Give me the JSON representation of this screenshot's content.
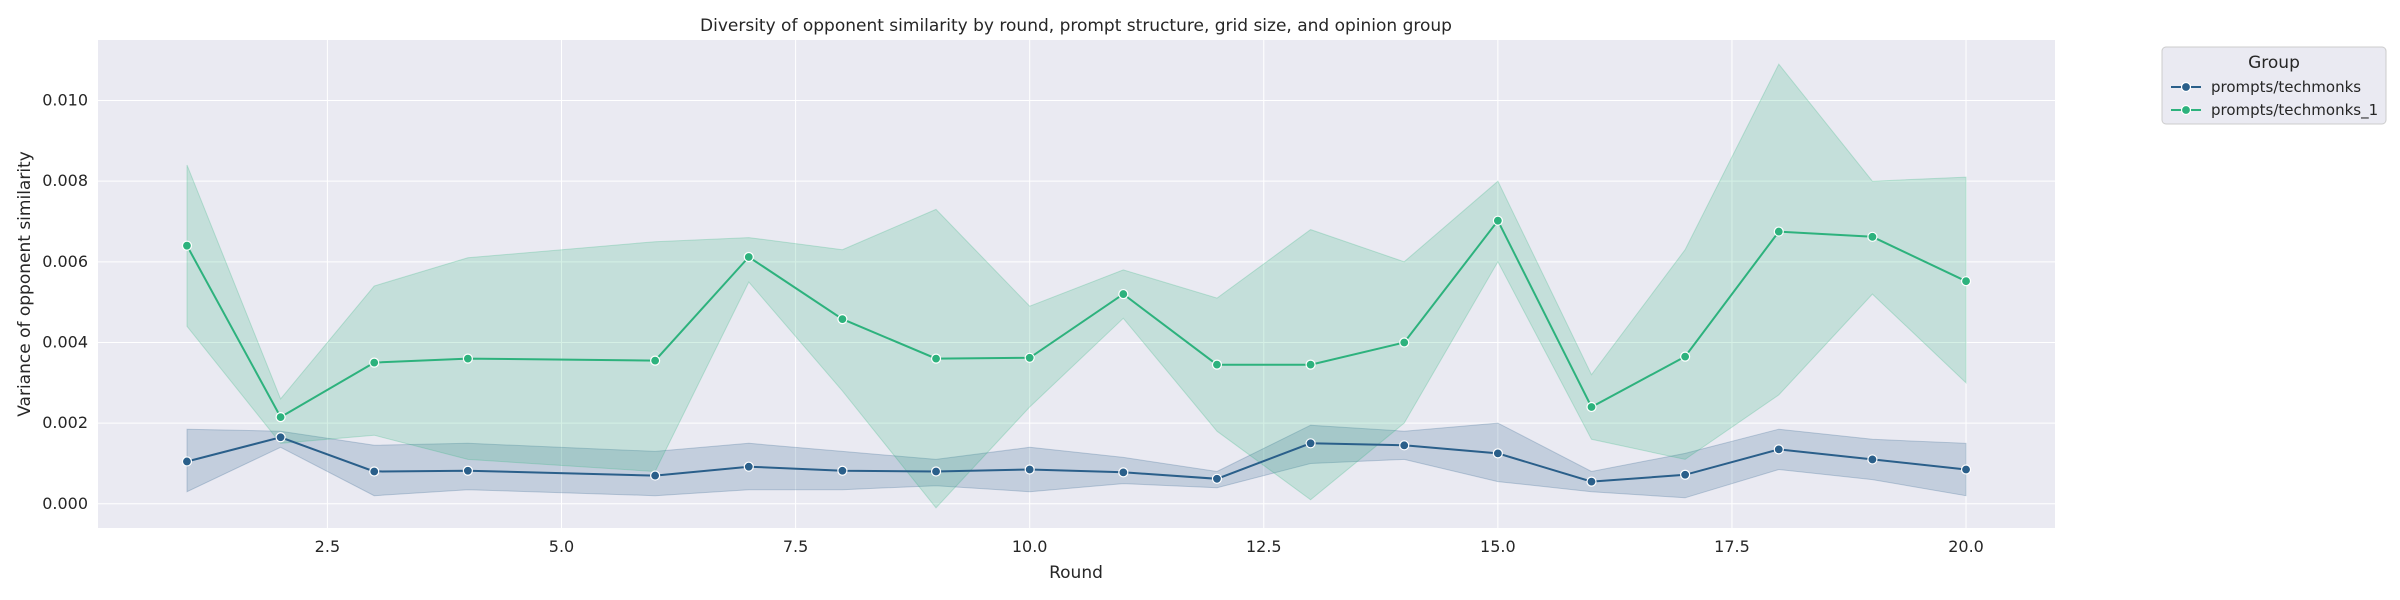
{
  "chart_data": {
    "type": "line",
    "title": "Diversity of opponent similarity by round, prompt structure, grid size, and opinion group",
    "xlabel": "Round",
    "ylabel": "Variance of opponent similarity",
    "xlim": [
      0.05,
      20.95
    ],
    "ylim": [
      -0.0006,
      0.0115
    ],
    "xticks": [
      2.5,
      5.0,
      7.5,
      10.0,
      12.5,
      15.0,
      17.5,
      20.0
    ],
    "xtick_labels": [
      "2.5",
      "5.0",
      "7.5",
      "10.0",
      "12.5",
      "15.0",
      "17.5",
      "20.0"
    ],
    "yticks": [
      0.0,
      0.002,
      0.004,
      0.006,
      0.008,
      0.01
    ],
    "ytick_labels": [
      "0.000",
      "0.002",
      "0.004",
      "0.006",
      "0.008",
      "0.010"
    ],
    "grid": true,
    "legend": {
      "title": "Group",
      "placement": "outside-top-right"
    },
    "x": [
      1,
      2,
      3,
      4,
      6,
      7,
      8,
      9,
      10,
      11,
      12,
      13,
      14,
      15,
      16,
      17,
      18,
      19,
      20
    ],
    "series": [
      {
        "name": "prompts/techmonks",
        "color": "#2a5f8a",
        "values": [
          0.00105,
          0.00165,
          0.0008,
          0.00082,
          0.0007,
          0.00092,
          0.00082,
          0.0008,
          0.00085,
          0.00078,
          0.00062,
          0.0015,
          0.00145,
          0.00125,
          0.00055,
          0.00072,
          0.00135,
          0.0011,
          0.00085
        ],
        "ci_lower": [
          0.0003,
          0.0014,
          0.0002,
          0.00035,
          0.0002,
          0.00035,
          0.00035,
          0.00045,
          0.0003,
          0.0005,
          0.0004,
          0.001,
          0.0011,
          0.00055,
          0.0003,
          0.00015,
          0.00085,
          0.0006,
          0.0002
        ],
        "ci_upper": [
          0.00185,
          0.0018,
          0.00145,
          0.0015,
          0.0013,
          0.0015,
          0.0013,
          0.0011,
          0.0014,
          0.00115,
          0.0008,
          0.00195,
          0.0018,
          0.002,
          0.0008,
          0.00125,
          0.00185,
          0.0016,
          0.0015
        ]
      },
      {
        "name": "prompts/techmonks_1",
        "color": "#2db27d",
        "values": [
          0.0064,
          0.00215,
          0.0035,
          0.0036,
          0.00355,
          0.00612,
          0.00458,
          0.0036,
          0.00362,
          0.0052,
          0.00345,
          0.00345,
          0.004,
          0.00702,
          0.0024,
          0.00365,
          0.00675,
          0.00662,
          0.00552
        ],
        "ci_lower": [
          0.0044,
          0.0015,
          0.0017,
          0.0011,
          0.0008,
          0.0055,
          0.0028,
          -0.0001,
          0.0024,
          0.0046,
          0.0018,
          0.0001,
          0.002,
          0.006,
          0.0016,
          0.0011,
          0.0027,
          0.0052,
          0.003
        ],
        "ci_upper": [
          0.0084,
          0.0026,
          0.0054,
          0.0061,
          0.0065,
          0.0066,
          0.0063,
          0.0073,
          0.0049,
          0.0058,
          0.0051,
          0.0068,
          0.006,
          0.008,
          0.0032,
          0.0063,
          0.0109,
          0.008,
          0.0081
        ]
      }
    ]
  }
}
